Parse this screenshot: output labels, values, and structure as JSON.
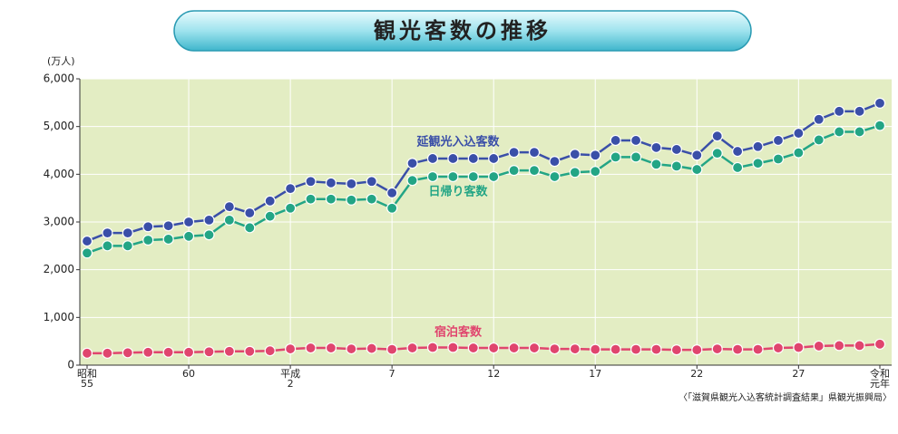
{
  "chart_data": {
    "type": "line",
    "title": "観光客数の推移",
    "y_label": "(万人)",
    "source": "〈「滋賀県観光入込客統計調査結果」県観光振興局〉",
    "categories": [
      "昭和\n55",
      null,
      null,
      null,
      null,
      "60",
      null,
      null,
      null,
      null,
      "平成\n2",
      null,
      null,
      null,
      null,
      "7",
      null,
      null,
      null,
      null,
      "12",
      null,
      null,
      null,
      null,
      "17",
      null,
      null,
      null,
      null,
      "22",
      null,
      null,
      null,
      null,
      "27",
      null,
      null,
      null,
      "令和\n元年"
    ],
    "series": [
      {
        "name": "延観光入込客数",
        "color": "#3a4fa8",
        "values": [
          2600,
          2770,
          2770,
          2900,
          2920,
          3000,
          3040,
          3320,
          3190,
          3440,
          3700,
          3850,
          3820,
          3800,
          3850,
          3610,
          4230,
          4330,
          4330,
          4330,
          4330,
          4460,
          4460,
          4270,
          4420,
          4400,
          4710,
          4710,
          4560,
          4520,
          4400,
          4800,
          4480,
          4580,
          4710,
          4860,
          5150,
          5320,
          5320,
          5490
        ]
      },
      {
        "name": "日帰り客数",
        "color": "#23a585",
        "values": [
          2350,
          2500,
          2500,
          2620,
          2640,
          2700,
          2730,
          3040,
          2880,
          3120,
          3290,
          3480,
          3480,
          3460,
          3480,
          3290,
          3870,
          3950,
          3950,
          3950,
          3950,
          4080,
          4080,
          3950,
          4040,
          4060,
          4360,
          4360,
          4210,
          4170,
          4100,
          4440,
          4140,
          4230,
          4320,
          4450,
          4720,
          4890,
          4890,
          5020
        ]
      },
      {
        "name": "宿泊客数",
        "color": "#e0456e",
        "values": [
          250,
          250,
          260,
          270,
          270,
          270,
          280,
          290,
          290,
          300,
          340,
          360,
          360,
          340,
          350,
          330,
          360,
          370,
          370,
          360,
          360,
          360,
          360,
          340,
          340,
          330,
          330,
          330,
          330,
          320,
          320,
          340,
          330,
          330,
          360,
          370,
          400,
          410,
          410,
          440
        ]
      }
    ],
    "ylim": [
      0,
      6000
    ],
    "yticks": [
      0,
      {
        "value": 1000,
        "label": "1,000"
      },
      {
        "value": 2000,
        "label": "2,000"
      },
      {
        "value": 3000,
        "label": "3,000"
      },
      {
        "value": 4000,
        "label": "4,000"
      },
      {
        "value": 5000,
        "label": "5,000"
      },
      {
        "value": 6000,
        "label": "6,000"
      }
    ],
    "grid": true
  }
}
